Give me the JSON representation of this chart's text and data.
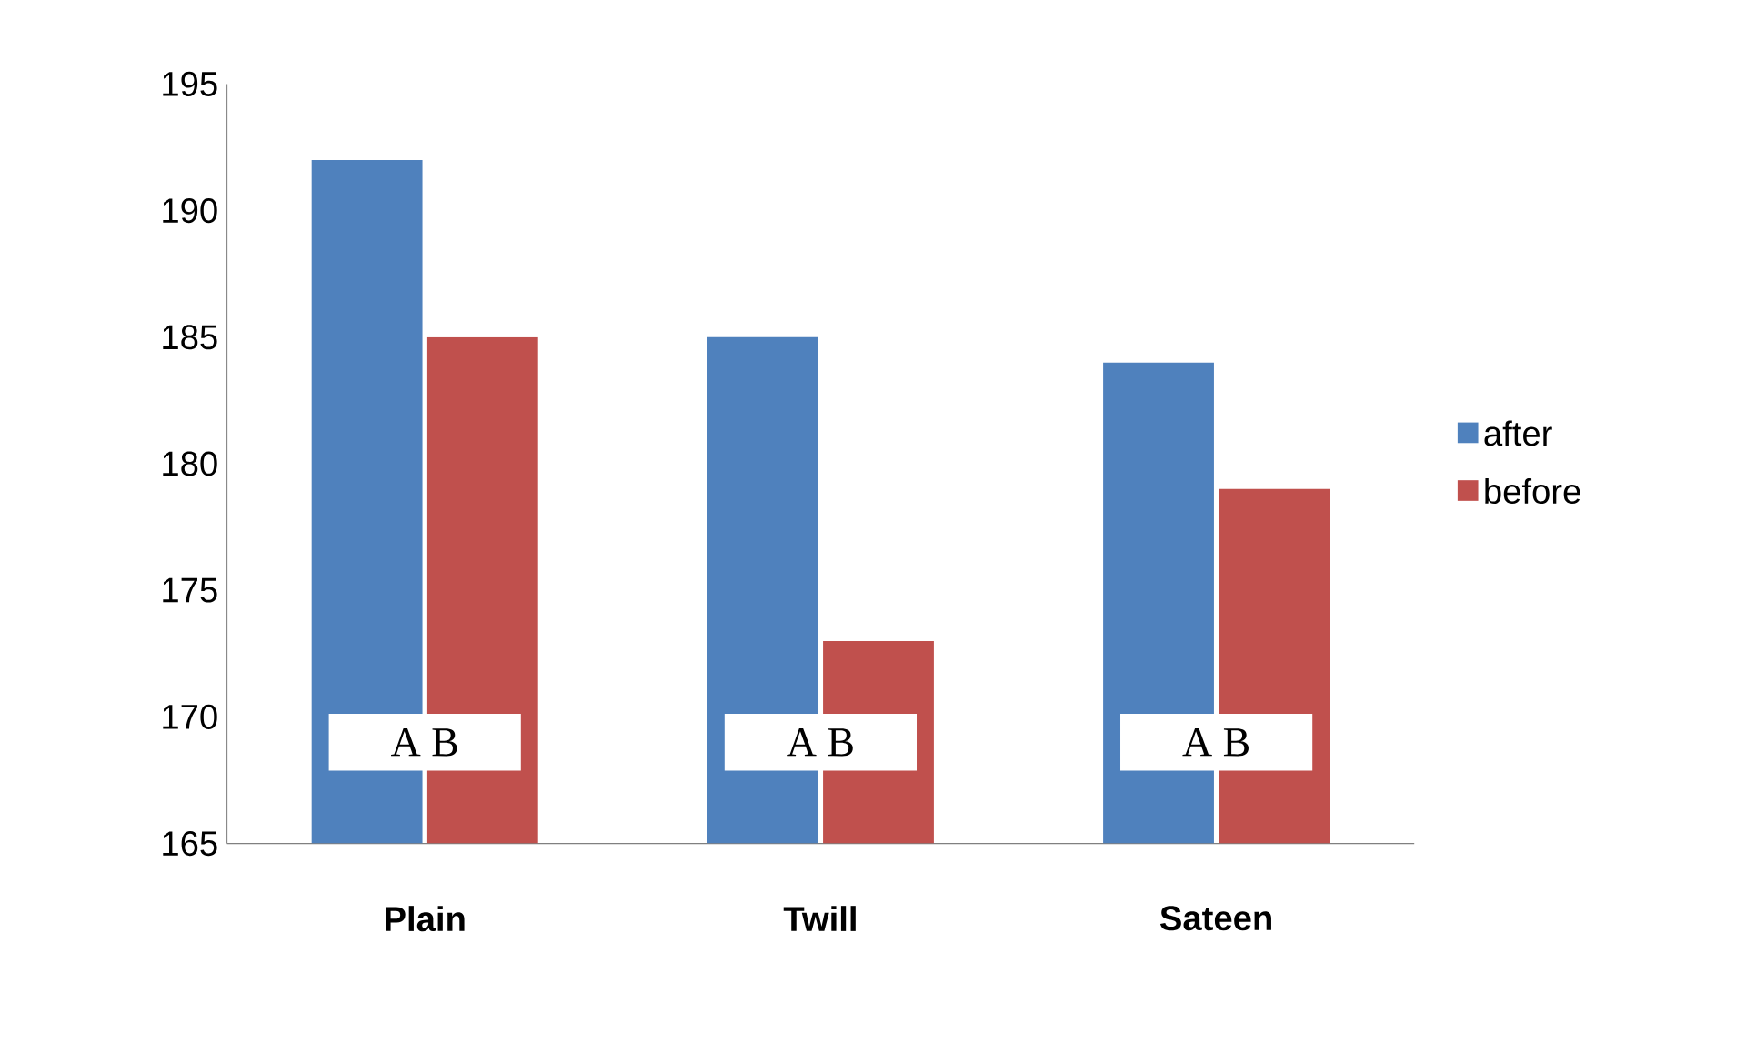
{
  "chart_data": {
    "type": "bar",
    "categories": [
      "Plain",
      "Twill",
      "Sateen"
    ],
    "series": [
      {
        "name": "after",
        "color": "#4f81bd",
        "values": [
          192,
          185,
          184
        ]
      },
      {
        "name": "before",
        "color": "#c0504d",
        "values": [
          185,
          173,
          179
        ]
      }
    ],
    "ylim": [
      165,
      195
    ],
    "yticks": [
      165,
      170,
      175,
      180,
      185,
      190,
      195
    ],
    "grid": false,
    "legend": "right",
    "annotations": [
      {
        "text": "A   B",
        "x": "Plain",
        "y": 169
      },
      {
        "text": "A   B",
        "x": "Twill",
        "y": 169
      },
      {
        "text": "A   B",
        "x": "Sateen",
        "y": 169
      }
    ]
  }
}
